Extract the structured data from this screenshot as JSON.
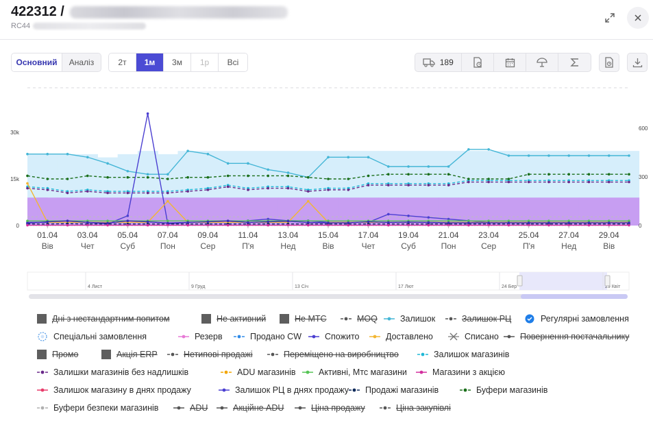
{
  "header": {
    "title_id": "422312 /",
    "subtitle": "RC44"
  },
  "toolbar": {
    "tabs": [
      {
        "label": "Основний",
        "active": true
      },
      {
        "label": "Аналіз",
        "active": false
      }
    ],
    "periods": [
      {
        "label": "2т",
        "state": "normal"
      },
      {
        "label": "1м",
        "state": "active"
      },
      {
        "label": "3м",
        "state": "normal"
      },
      {
        "label": "1р",
        "state": "disabled"
      },
      {
        "label": "Всі",
        "state": "normal"
      }
    ],
    "truck_count": "189"
  },
  "chart_data": {
    "type": "line",
    "x": [
      "31.03",
      "01.04",
      "02.04",
      "03.04",
      "04.04",
      "05.04",
      "06.04",
      "07.04",
      "08.04",
      "09.04",
      "10.04",
      "11.04",
      "12.04",
      "13.04",
      "14.04",
      "15.04",
      "16.04",
      "17.04",
      "18.04",
      "19.04",
      "20.04",
      "21.04",
      "22.04",
      "23.04",
      "24.04",
      "25.04",
      "26.04",
      "27.04",
      "28.04",
      "29.04",
      "30.04"
    ],
    "x_tick_labels": [
      {
        "date": "01.04",
        "day": "Вів"
      },
      {
        "date": "03.04",
        "day": "Чет"
      },
      {
        "date": "05.04",
        "day": "Суб"
      },
      {
        "date": "07.04",
        "day": "Пон"
      },
      {
        "date": "09.04",
        "day": "Сер"
      },
      {
        "date": "11.04",
        "day": "П'я"
      },
      {
        "date": "13.04",
        "day": "Нед"
      },
      {
        "date": "15.04",
        "day": "Вів"
      },
      {
        "date": "17.04",
        "day": "Чет"
      },
      {
        "date": "19.04",
        "day": "Суб"
      },
      {
        "date": "21.04",
        "day": "Пон"
      },
      {
        "date": "23.04",
        "day": "Сер"
      },
      {
        "date": "25.04",
        "day": "П'я"
      },
      {
        "date": "27.04",
        "day": "Нед"
      },
      {
        "date": "29.04",
        "day": "Вів"
      }
    ],
    "y_left_ticks": [
      "0",
      "15k",
      "30k"
    ],
    "y_left_range": [
      0,
      30000
    ],
    "y_right_ticks": [
      "0",
      "300",
      "600"
    ],
    "y_right_range": [
      0,
      600
    ],
    "series": [
      {
        "name": "Залишок",
        "color": "#45b6d6",
        "axis": "left",
        "style": "solid",
        "values": [
          23000,
          23000,
          23000,
          22000,
          20000,
          17500,
          16500,
          16500,
          24000,
          23000,
          20000,
          20000,
          18000,
          17000,
          15500,
          22000,
          22000,
          22000,
          19000,
          19000,
          19000,
          19000,
          24500,
          24500,
          22500,
          22500,
          22500,
          22500,
          22500,
          22500,
          22500
        ]
      },
      {
        "name": "Залишок магазинів",
        "color": "#1fb8d6",
        "axis": "left",
        "style": "dashed",
        "values": [
          12500,
          12000,
          11000,
          11500,
          11000,
          11000,
          11000,
          11000,
          11500,
          12000,
          13000,
          12000,
          12500,
          12500,
          11500,
          12000,
          12000,
          13500,
          13500,
          13500,
          13500,
          13500,
          14500,
          14500,
          14500,
          14500,
          14500,
          14500,
          14500,
          14500,
          14500
        ]
      },
      {
        "name": "Залишки магазинів без надлишків",
        "color": "#6a2a8a",
        "axis": "left",
        "style": "dashed",
        "values": [
          12000,
          11500,
          10500,
          11000,
          10500,
          10500,
          10500,
          10500,
          11000,
          11500,
          12500,
          11500,
          12000,
          12000,
          11000,
          11500,
          11500,
          13000,
          13000,
          13000,
          13000,
          13000,
          14000,
          14000,
          14000,
          14000,
          14000,
          14000,
          14000,
          14000,
          14000
        ]
      },
      {
        "name": "Буфери магазинів",
        "color": "#1a6e1a",
        "axis": "left",
        "style": "dashed",
        "values": [
          16000,
          15000,
          15000,
          16000,
          15500,
          15500,
          15500,
          15000,
          15500,
          15500,
          16000,
          16000,
          16000,
          16000,
          15500,
          15000,
          15000,
          16000,
          16500,
          16500,
          16500,
          16500,
          15000,
          15000,
          15000,
          16500,
          16500,
          16500,
          16500,
          16500,
          16500
        ]
      },
      {
        "name": "Залишок РЦ в днях продажу",
        "color": "#4b3fd1",
        "axis": "right",
        "style": "solid",
        "values": [
          20,
          20,
          20,
          20,
          10,
          60,
          690,
          10,
          20,
          20,
          20,
          30,
          40,
          30,
          30,
          20,
          20,
          20,
          70,
          60,
          50,
          40,
          30,
          20,
          20,
          20,
          20,
          20,
          20,
          20,
          20
        ]
      },
      {
        "name": "Доставлено",
        "color": "#f2b632",
        "axis": "right",
        "style": "solid",
        "values": [
          260,
          20,
          20,
          20,
          20,
          20,
          20,
          150,
          20,
          20,
          20,
          20,
          20,
          20,
          150,
          20,
          20,
          20,
          20,
          20,
          20,
          20,
          20,
          20,
          20,
          20,
          20,
          20,
          20,
          20,
          20
        ]
      },
      {
        "name": "Активні, Мтс магазини",
        "color": "#55c455",
        "axis": "left",
        "style": "solid",
        "values": [
          1500,
          1500,
          1500,
          1500,
          1500,
          1500,
          1500,
          1500,
          1500,
          1500,
          1500,
          1500,
          1500,
          1500,
          1500,
          1500,
          1500,
          1500,
          1500,
          1500,
          1500,
          1500,
          1500,
          1500,
          1500,
          1500,
          1500,
          1500,
          1500,
          1500,
          1500
        ]
      },
      {
        "name": "Продажі магазинів",
        "color": "#0f2a5a",
        "axis": "left",
        "style": "dashed",
        "values": [
          500,
          500,
          600,
          500,
          500,
          500,
          500,
          500,
          500,
          500,
          500,
          500,
          500,
          500,
          500,
          500,
          500,
          500,
          500,
          500,
          500,
          500,
          500,
          500,
          500,
          500,
          500,
          500,
          500,
          500,
          500
        ]
      },
      {
        "name": "Спожито",
        "color": "#3a2bb8",
        "axis": "left",
        "style": "solid",
        "values": [
          800,
          1200,
          1500,
          1000,
          800,
          1500,
          1200,
          800,
          1000,
          1200,
          1500,
          1000,
          1200,
          1400,
          1000,
          900,
          900,
          1200,
          1000,
          1100,
          1000,
          900,
          900,
          900,
          900,
          900,
          900,
          900,
          900,
          900,
          900
        ]
      },
      {
        "name": "Магазини з акцією",
        "color": "#d22f9e",
        "axis": "left",
        "style": "solid",
        "values": [
          100,
          100,
          100,
          100,
          100,
          100,
          100,
          100,
          100,
          100,
          100,
          100,
          100,
          100,
          100,
          100,
          100,
          100,
          100,
          100,
          100,
          100,
          100,
          100,
          100,
          100,
          100,
          100,
          100,
          100,
          100
        ]
      }
    ],
    "bars": [
      {
        "name": "Залишок РЦ",
        "color": "#d6eefb",
        "values": [
          440,
          440,
          440,
          440,
          420,
          440,
          460,
          440,
          460,
          460,
          460,
          460,
          460,
          460,
          460,
          460,
          460,
          460,
          460,
          460,
          460,
          460,
          460,
          460,
          460,
          460,
          460,
          460,
          460,
          460,
          460
        ]
      }
    ],
    "area_violet": {
      "color": "#c79ef2",
      "values": [
        9000,
        9000,
        9000,
        9000,
        9000,
        9000,
        9000,
        9000,
        9000,
        9000,
        9000,
        9000,
        9000,
        9000,
        9000,
        9000,
        9000,
        9000,
        9000,
        9000,
        9000,
        9000,
        9000,
        9000,
        9000,
        9000,
        9000,
        9000,
        9000,
        9000,
        9000
      ]
    },
    "navigator_labels": [
      "4 Лист",
      "9 Груд",
      "13 Січ",
      "17 Лют",
      "24 Бер",
      "29 Квіт"
    ]
  },
  "legend": [
    {
      "label": "Дні з нестандартним попитом",
      "marker": "square",
      "color": "#555",
      "off": true
    },
    {
      "label": "Не активний",
      "marker": "square",
      "color": "#555",
      "off": true
    },
    {
      "label": "Не МТС",
      "marker": "square",
      "color": "#555",
      "off": true
    },
    {
      "label": "MOQ",
      "marker": "dash-dot",
      "color": "#555",
      "off": true
    },
    {
      "label": "Залишок",
      "marker": "line-dot",
      "color": "#45b6d6",
      "off": false
    },
    {
      "label": "Залишок РЦ",
      "marker": "dash-dot",
      "color": "#555",
      "off": true
    },
    {
      "label": "Регулярні замовлення",
      "marker": "badge",
      "color": "#1f7ee8",
      "off": false
    },
    {
      "label": "Спеціальні замовлення",
      "marker": "badge-outline",
      "color": "#5aa0e8",
      "off": false
    },
    {
      "label": "Резерв",
      "marker": "line-dot",
      "color": "#e77ad6",
      "off": false
    },
    {
      "label": "Продано CW",
      "marker": "dash-dot",
      "color": "#2f8be8",
      "off": false
    },
    {
      "label": "Спожито",
      "marker": "line-dot",
      "color": "#4b3fd1",
      "off": false
    },
    {
      "label": "Доставлено",
      "marker": "line-dot",
      "color": "#f2b632",
      "off": false
    },
    {
      "label": "Списано",
      "marker": "cross",
      "color": "#777",
      "off": false
    },
    {
      "label": "Повернення постачальнику",
      "marker": "line-dot",
      "color": "#555",
      "off": true
    },
    {
      "label": "Промо",
      "marker": "square",
      "color": "#555",
      "off": true
    },
    {
      "label": "Акція ERP",
      "marker": "square",
      "color": "#555",
      "off": true
    },
    {
      "label": "Нетипові продажі",
      "marker": "dash-dot",
      "color": "#555",
      "off": true
    },
    {
      "label": "Переміщено на виробництво",
      "marker": "dash-dot",
      "color": "#555",
      "off": true
    },
    {
      "label": "Залишок магазинів",
      "marker": "dash-dot",
      "color": "#1fb8d6",
      "off": false
    },
    {
      "label": "Залишки магазинів без надлишків",
      "marker": "dash-dot",
      "color": "#6a2a8a",
      "off": false
    },
    {
      "label": "ADU магазинів",
      "marker": "dash-dot",
      "color": "#f2a500",
      "off": false
    },
    {
      "label": "Активні, Мтс магазини",
      "marker": "line-dot",
      "color": "#55c455",
      "off": false
    },
    {
      "label": "Магазини з акцією",
      "marker": "line-dot",
      "color": "#d22f9e",
      "off": false
    },
    {
      "label": "Залишок магазину в днях продажу",
      "marker": "line-dot",
      "color": "#e83b6a",
      "off": false
    },
    {
      "label": "Залишок РЦ в днях продажу",
      "marker": "line-dot",
      "color": "#4b3fd1",
      "off": false
    },
    {
      "label": "Продажі магазинів",
      "marker": "dash-dot",
      "color": "#0f2a5a",
      "off": false
    },
    {
      "label": "Буфери магазинів",
      "marker": "dash-dot",
      "color": "#1a6e1a",
      "off": false
    },
    {
      "label": "Буфери безпеки магазинів",
      "marker": "dash-dot",
      "color": "#b0b0b0",
      "off": false
    },
    {
      "label": "ADU",
      "marker": "line-dot",
      "color": "#555",
      "off": true
    },
    {
      "label": "Акційне ADU",
      "marker": "line-dot",
      "color": "#555",
      "off": true
    },
    {
      "label": "Ціна продажу",
      "marker": "line-dot",
      "color": "#555",
      "off": true
    },
    {
      "label": "Ціна закупівлі",
      "marker": "dash-dot",
      "color": "#555",
      "off": true
    }
  ]
}
